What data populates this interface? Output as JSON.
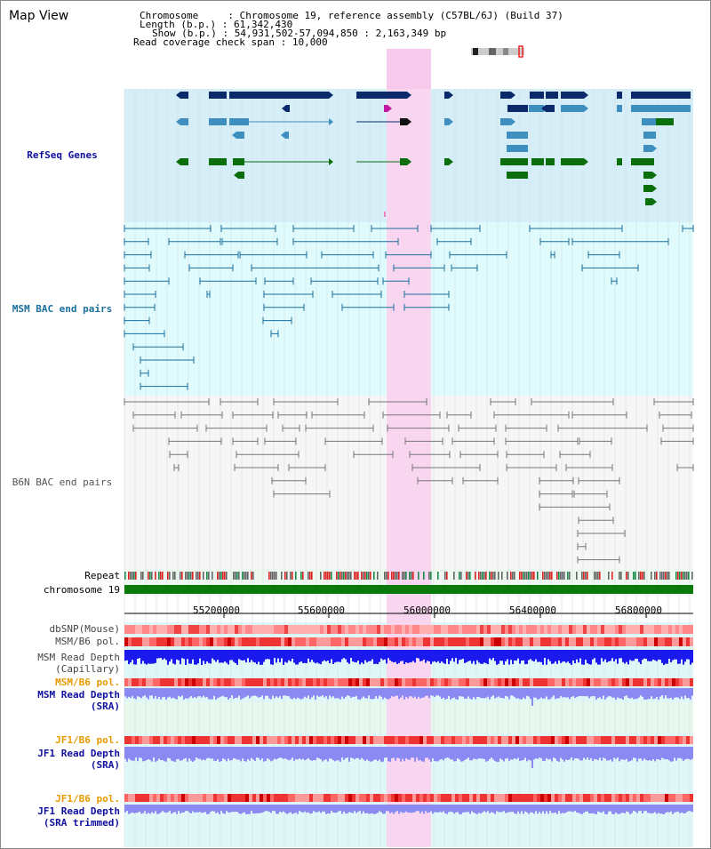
{
  "title": "Map View",
  "info": {
    "chromosome_key": "Chromosome",
    "chromosome_val": "Chromosome 19, reference assembly (C57BL/6J) (Build 37)",
    "length_key": "Length (b.p.)",
    "length_val": "61,342,430",
    "show_key": "Show (b.p.)",
    "show_val": "54,931,502-57,094,850 : 2,163,349 bp",
    "span_key": "Read coverage check span",
    "span_val": "10,000"
  },
  "tracks": {
    "refseq": "RefSeq Genes",
    "msm_bac": "MSM BAC end pairs",
    "b6n_bac": "B6N BAC end pairs",
    "repeat": "Repeat",
    "chromosome": "chromosome 19",
    "dbsnp": "dbSNP(Mouse)",
    "msm_b6_pol": "MSM/B6 pol.",
    "msm_depth_cap_1": "MSM Read Depth",
    "msm_depth_cap_2": "(Capillary)",
    "msm_b6_pol2": "MSM/B6 pol.",
    "msm_depth_sra_1": "MSM Read Depth",
    "msm_depth_sra_2": "(SRA)",
    "jf1_b6_pol": "JF1/B6 pol.",
    "jf1_depth_sra_1": "JF1 Read Depth",
    "jf1_depth_sra_2": "(SRA)",
    "jf1_b6_pol2": "JF1/B6 pol.",
    "jf1_depth_trim_1": "JF1 Read Depth",
    "jf1_depth_trim_2": "(SRA trimmed)"
  },
  "axis": {
    "ticks": [
      "55200000",
      "55600000",
      "56000000",
      "56400000",
      "56800000"
    ]
  },
  "colors": {
    "refseq_bg": "#d6eef8",
    "msm_bg": "#e0fbfb",
    "b6n_bg": "#f6f6f6",
    "highlight": "#f9d6f0",
    "navy": "#0a2a6b",
    "steel": "#3e8ebe",
    "green": "#0a6e0a",
    "bac_line": "#1a6f9e",
    "gray_line": "#777777",
    "depth_blue": "#1a1aee",
    "depth_light": "#8a8af2",
    "pol_red": "#ee3333"
  }
}
